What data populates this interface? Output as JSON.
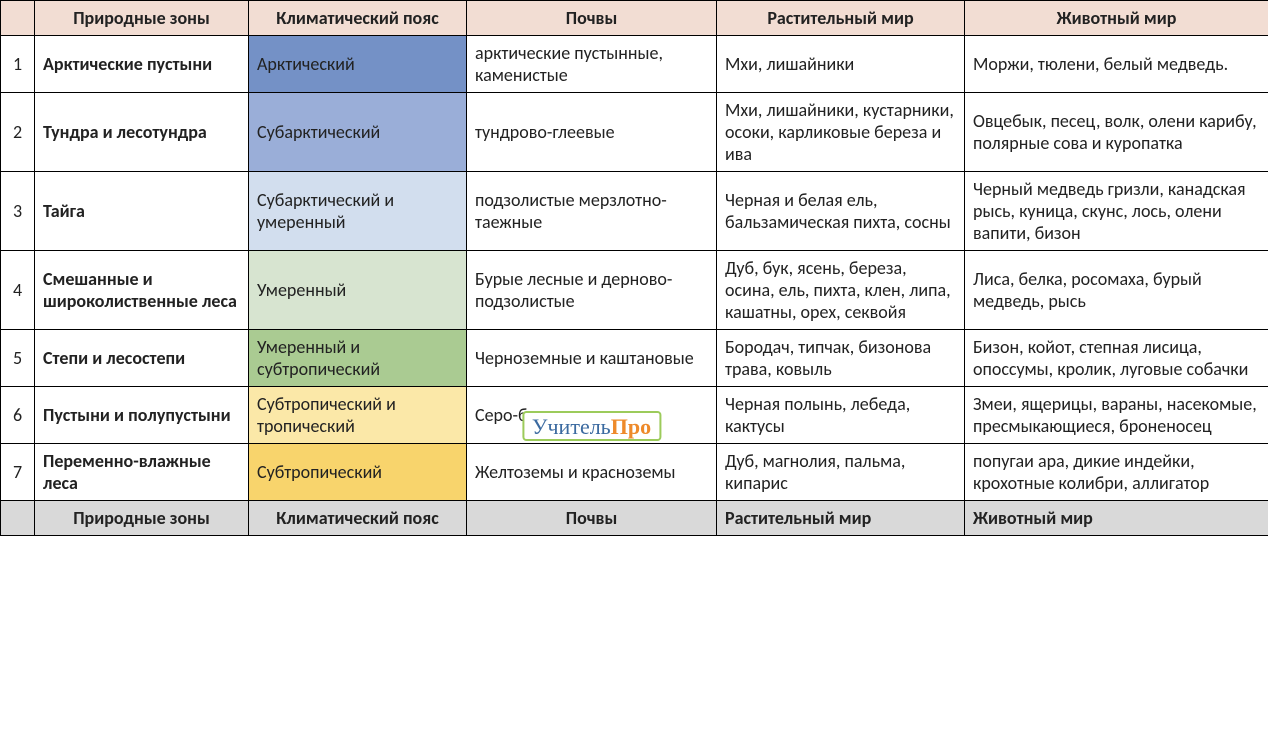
{
  "headers": {
    "idx": "",
    "zone": "Природные зоны",
    "climate": "Климатический пояс",
    "soil": "Почвы",
    "plants": "Растительный мир",
    "animals": "Животный мир"
  },
  "footers": {
    "zone": "Природные зоны",
    "climate": "Климатический пояс",
    "soil": "Почвы",
    "plants": "Растительный мир",
    "animals": "Животный мир"
  },
  "climate_colors": [
    "#7491c6",
    "#9aaed8",
    "#d2deee",
    "#d7e4d0",
    "#aacb92",
    "#fbe8a8",
    "#f8d46c"
  ],
  "rows": [
    {
      "idx": "1",
      "zone": "Арктические пустыни",
      "climate": "Арктический",
      "soil": "арктические пустынные, каменистые",
      "plants": "Мхи, лишайники",
      "animals": "Моржи, тюлени, белый медведь."
    },
    {
      "idx": "2",
      "zone": "Тундра и лесотундра",
      "climate": "Субарктический",
      "soil": "тундрово-глеевые",
      "plants": "Мхи, лишайники, кустарники, осоки, карликовые береза и ива",
      "animals": "Овцебык, песец, волк, олени карибу, полярные сова и куропатка"
    },
    {
      "idx": "3",
      "zone": "Тайга",
      "climate": "Субарктический и умеренный",
      "soil": "подзолистые мерзлотно-таежные",
      "plants": "Черная и белая ель, бальзамическая пихта, сосны",
      "animals": "Черный медведь гризли, канадская рысь, куница, скунс, лось, олени вапити, бизон"
    },
    {
      "idx": "4",
      "zone": "Смешанные и широколиственные леса",
      "climate": "Умеренный",
      "soil": "Бурые лесные и дерново-подзолистые",
      "plants": "Дуб, бук, ясень, береза, осина, ель, пихта, клен, липа, кашатны, орех, секвойя",
      "animals": "Лиса, белка, росомаха, бурый медведь, рысь"
    },
    {
      "idx": "5",
      "zone": "Степи и лесостепи",
      "climate": "Умеренный и субтропический",
      "soil": "Черноземные и каштановые",
      "plants": "Бородач, типчак, бизонова трава, ковыль",
      "animals": "Бизон, койот, степная лисица, опоссумы, кролик,  луговые собачки"
    },
    {
      "idx": "6",
      "zone": "Пустыни и полупустыни",
      "climate": "Субтропический и тропический",
      "soil": "Серо-бурые и сероземы",
      "plants": "Черная полынь, лебеда, кактусы",
      "animals": "Змеи, ящерицы, вараны, насекомые, пресмыкающиеся, броненосец"
    },
    {
      "idx": "7",
      "zone": "Переменно-влажные леса",
      "climate": "Субтропический",
      "soil": "Желтоземы и красноземы",
      "plants": "Дуб, магнолия, пальма, кипарис",
      "animals": "попугаи ара, дикие индейки, крохотные колибри, аллигатор"
    }
  ],
  "watermark": {
    "p1": "Учитель",
    "p2": "Про"
  }
}
